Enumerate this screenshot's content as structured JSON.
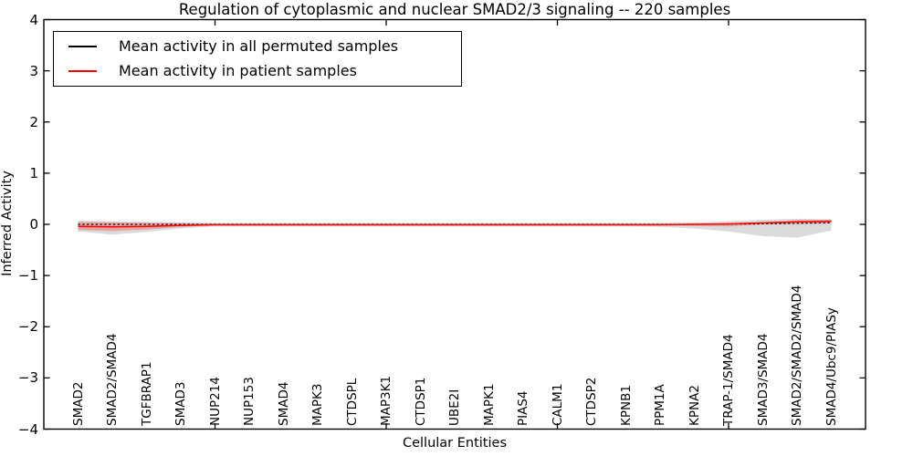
{
  "title": "Regulation of cytoplasmic and nuclear SMAD2/3 signaling -- 220 samples",
  "axes": {
    "ylabel": "Inferred Activity",
    "xlabel": "Cellular Entities"
  },
  "legend": {
    "items": [
      {
        "label": "Mean activity in all permuted samples",
        "color": "#000000"
      },
      {
        "label": "Mean activity in patient samples",
        "color": "#ff0000"
      }
    ]
  },
  "chart_data": {
    "type": "line",
    "title": "Regulation of cytoplasmic and nuclear SMAD2/3 signaling -- 220 samples",
    "xlabel": "Cellular Entities",
    "ylabel": "Inferred Activity",
    "ylim": [
      -4,
      4
    ],
    "xlim": [
      0,
      24
    ],
    "grid": false,
    "legend_position": "upper left",
    "y_ticks": [
      4,
      3,
      2,
      1,
      0,
      -1,
      -2,
      -3,
      -4
    ],
    "y_tick_labels": [
      "4",
      "3",
      "2",
      "1",
      "0",
      "−1",
      "−2",
      "−3",
      "−4"
    ],
    "x_major_ticks": [
      5,
      10,
      15,
      20
    ],
    "categories": [
      "SMAD2",
      "SMAD2/SMAD4",
      "TGFBRAP1",
      "SMAD3",
      "NUP214",
      "NUP153",
      "SMAD4",
      "MAPK3",
      "CTDSPL",
      "MAP3K1",
      "CTDSP1",
      "UBE2I",
      "MAPK1",
      "PIAS4",
      "CALM1",
      "CTDSP2",
      "KPNB1",
      "PPM1A",
      "KPNA2",
      "TRAP-1/SMAD4",
      "SMAD3/SMAD4",
      "SMAD2/SMAD2/SMAD4",
      "SMAD4/Ubc9/PIASy"
    ],
    "series": [
      {
        "name": "Mean activity in all permuted samples",
        "color": "#000000",
        "style": "dotted",
        "values": [
          0,
          0,
          0,
          0,
          0,
          0,
          0,
          0,
          0,
          0,
          0,
          0,
          0,
          0,
          0,
          0,
          0,
          0,
          0,
          0.005,
          0.01,
          0.02,
          0.03
        ]
      },
      {
        "name": "Mean activity in patient samples",
        "color": "#ff0000",
        "style": "solid",
        "values": [
          -0.04,
          -0.05,
          -0.04,
          -0.02,
          -0.01,
          -0.01,
          -0.01,
          -0.01,
          -0.01,
          -0.01,
          -0.01,
          -0.01,
          -0.01,
          -0.01,
          -0.01,
          -0.01,
          -0.01,
          -0.01,
          0,
          0.01,
          0.03,
          0.05,
          0.06
        ]
      }
    ],
    "bands": [
      {
        "name": "permuted-samples-spread",
        "color": "#bdbdbd",
        "opacity": 0.55,
        "upper": [
          0.07,
          0.06,
          0.05,
          0.04,
          0.03,
          0.03,
          0.03,
          0.03,
          0.03,
          0.03,
          0.03,
          0.03,
          0.03,
          0.03,
          0.03,
          0.03,
          0.03,
          0.03,
          0.04,
          0.06,
          0.09,
          0.11,
          0.1
        ],
        "lower": [
          -0.14,
          -0.2,
          -0.15,
          -0.08,
          -0.04,
          -0.04,
          -0.04,
          -0.04,
          -0.04,
          -0.04,
          -0.04,
          -0.04,
          -0.04,
          -0.04,
          -0.04,
          -0.04,
          -0.04,
          -0.05,
          -0.08,
          -0.14,
          -0.23,
          -0.26,
          -0.12
        ]
      },
      {
        "name": "patient-samples-spread",
        "color": "#ff0000",
        "opacity": 0.25,
        "upper": [
          0.05,
          0.04,
          0.03,
          0.02,
          0.01,
          0.01,
          0.01,
          0.01,
          0.01,
          0.01,
          0.01,
          0.01,
          0.01,
          0.01,
          0.01,
          0.01,
          0.01,
          0.01,
          0.01,
          0.02,
          0.04,
          0.08,
          0.09
        ],
        "lower": [
          -0.11,
          -0.13,
          -0.1,
          -0.05,
          -0.02,
          -0.02,
          -0.02,
          -0.02,
          -0.02,
          -0.02,
          -0.02,
          -0.02,
          -0.02,
          -0.02,
          -0.02,
          -0.02,
          -0.02,
          -0.02,
          -0.03,
          -0.04,
          0.0,
          0.01,
          0.02
        ]
      }
    ]
  }
}
